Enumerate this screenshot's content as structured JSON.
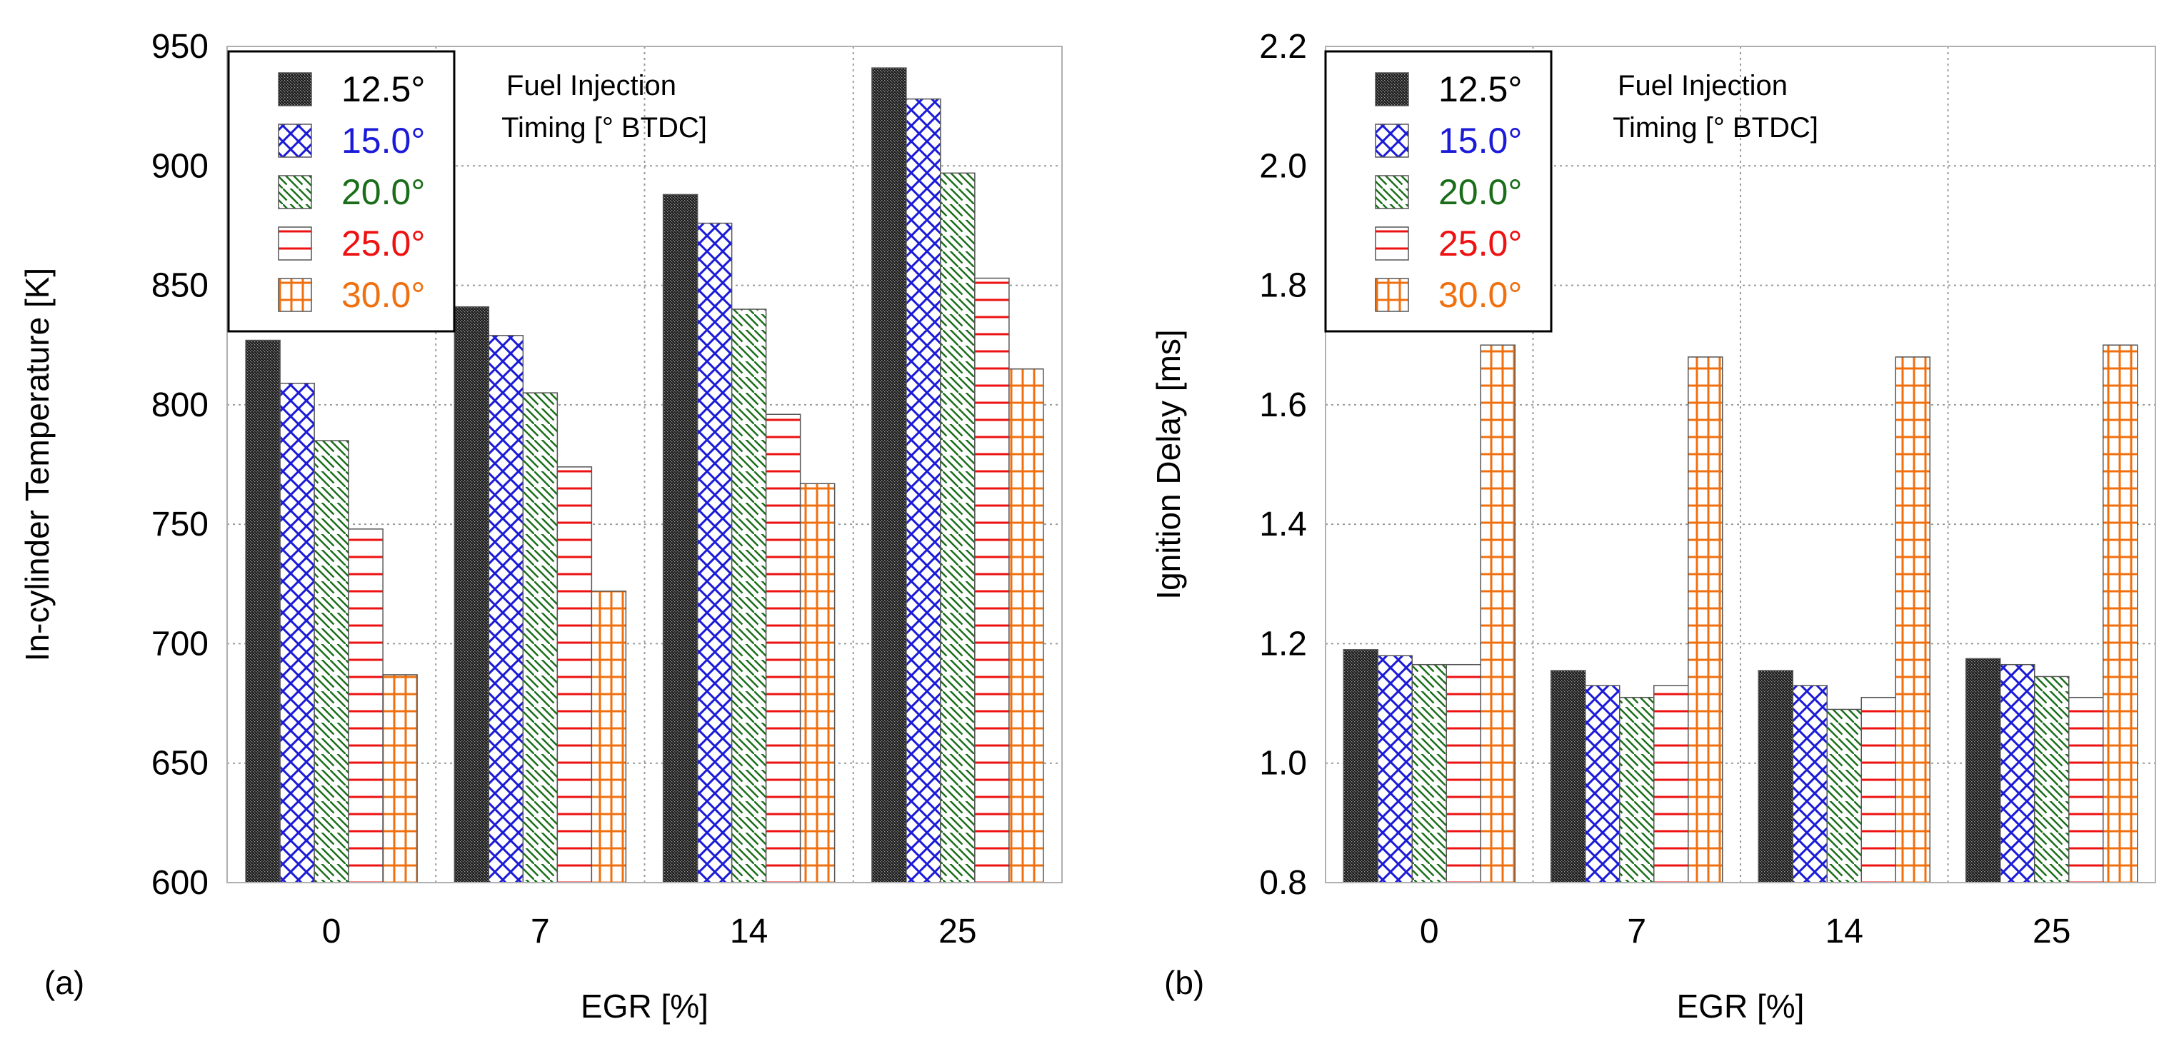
{
  "legend_title_line1": "Fuel Injection",
  "legend_title_line2": "Timing [° BTDC]",
  "series_styles": [
    {
      "label": "12.5°",
      "text_color": "#000000",
      "fill": "#3a3a3a",
      "line": "#ffffff",
      "pattern": "dots-dark"
    },
    {
      "label": "15.0°",
      "text_color": "#1a1ad8",
      "fill": "#ffffff",
      "line": "#1a1ad8",
      "pattern": "crosshatch"
    },
    {
      "label": "20.0°",
      "text_color": "#1a6e1a",
      "fill": "#ffffff",
      "line": "#1a6e1a",
      "pattern": "diagonal"
    },
    {
      "label": "25.0°",
      "text_color": "#ee1111",
      "fill": "#ffffff",
      "line": "#ee1111",
      "pattern": "horizontal"
    },
    {
      "label": "30.0°",
      "text_color": "#f07010",
      "fill": "#ffffff",
      "line": "#f07010",
      "pattern": "grid"
    }
  ],
  "chart_data": [
    {
      "type": "bar",
      "panel_label": "(a)",
      "title": "",
      "xlabel": "EGR [%]",
      "ylabel": "In-cylinder Temperature [K]",
      "categories": [
        "0",
        "7",
        "14",
        "25"
      ],
      "ylim": [
        600,
        950
      ],
      "yticks": [
        600,
        650,
        700,
        750,
        800,
        850,
        900,
        950
      ],
      "ytick_labels": [
        "600",
        "650",
        "700",
        "750",
        "800",
        "850",
        "900",
        "950"
      ],
      "grid": true,
      "legend": "top-left",
      "series": [
        {
          "name": "12.5°",
          "values": [
            827,
            841,
            888,
            941
          ]
        },
        {
          "name": "15.0°",
          "values": [
            809,
            829,
            876,
            928
          ]
        },
        {
          "name": "20.0°",
          "values": [
            785,
            805,
            840,
            897
          ]
        },
        {
          "name": "25.0°",
          "values": [
            748,
            774,
            796,
            853
          ]
        },
        {
          "name": "30.0°",
          "values": [
            687,
            722,
            767,
            815
          ]
        }
      ]
    },
    {
      "type": "bar",
      "panel_label": "(b)",
      "title": "",
      "xlabel": "EGR [%]",
      "ylabel": "Ignition Delay [ms]",
      "categories": [
        "0",
        "7",
        "14",
        "25"
      ],
      "ylim": [
        0.8,
        2.2
      ],
      "yticks": [
        0.8,
        1.0,
        1.2,
        1.4,
        1.6,
        1.8,
        2.0,
        2.2
      ],
      "ytick_labels": [
        "0.8",
        "1.0",
        "1.2",
        "1.4",
        "1.6",
        "1.8",
        "2.0",
        "2.2"
      ],
      "grid": true,
      "legend": "top-left",
      "series": [
        {
          "name": "12.5°",
          "values": [
            1.19,
            1.155,
            1.155,
            1.175
          ]
        },
        {
          "name": "15.0°",
          "values": [
            1.18,
            1.13,
            1.13,
            1.165
          ]
        },
        {
          "name": "20.0°",
          "values": [
            1.165,
            1.11,
            1.09,
            1.145
          ]
        },
        {
          "name": "25.0°",
          "values": [
            1.165,
            1.13,
            1.11,
            1.11
          ]
        },
        {
          "name": "30.0°",
          "values": [
            1.7,
            1.68,
            1.68,
            1.7
          ]
        }
      ]
    }
  ]
}
